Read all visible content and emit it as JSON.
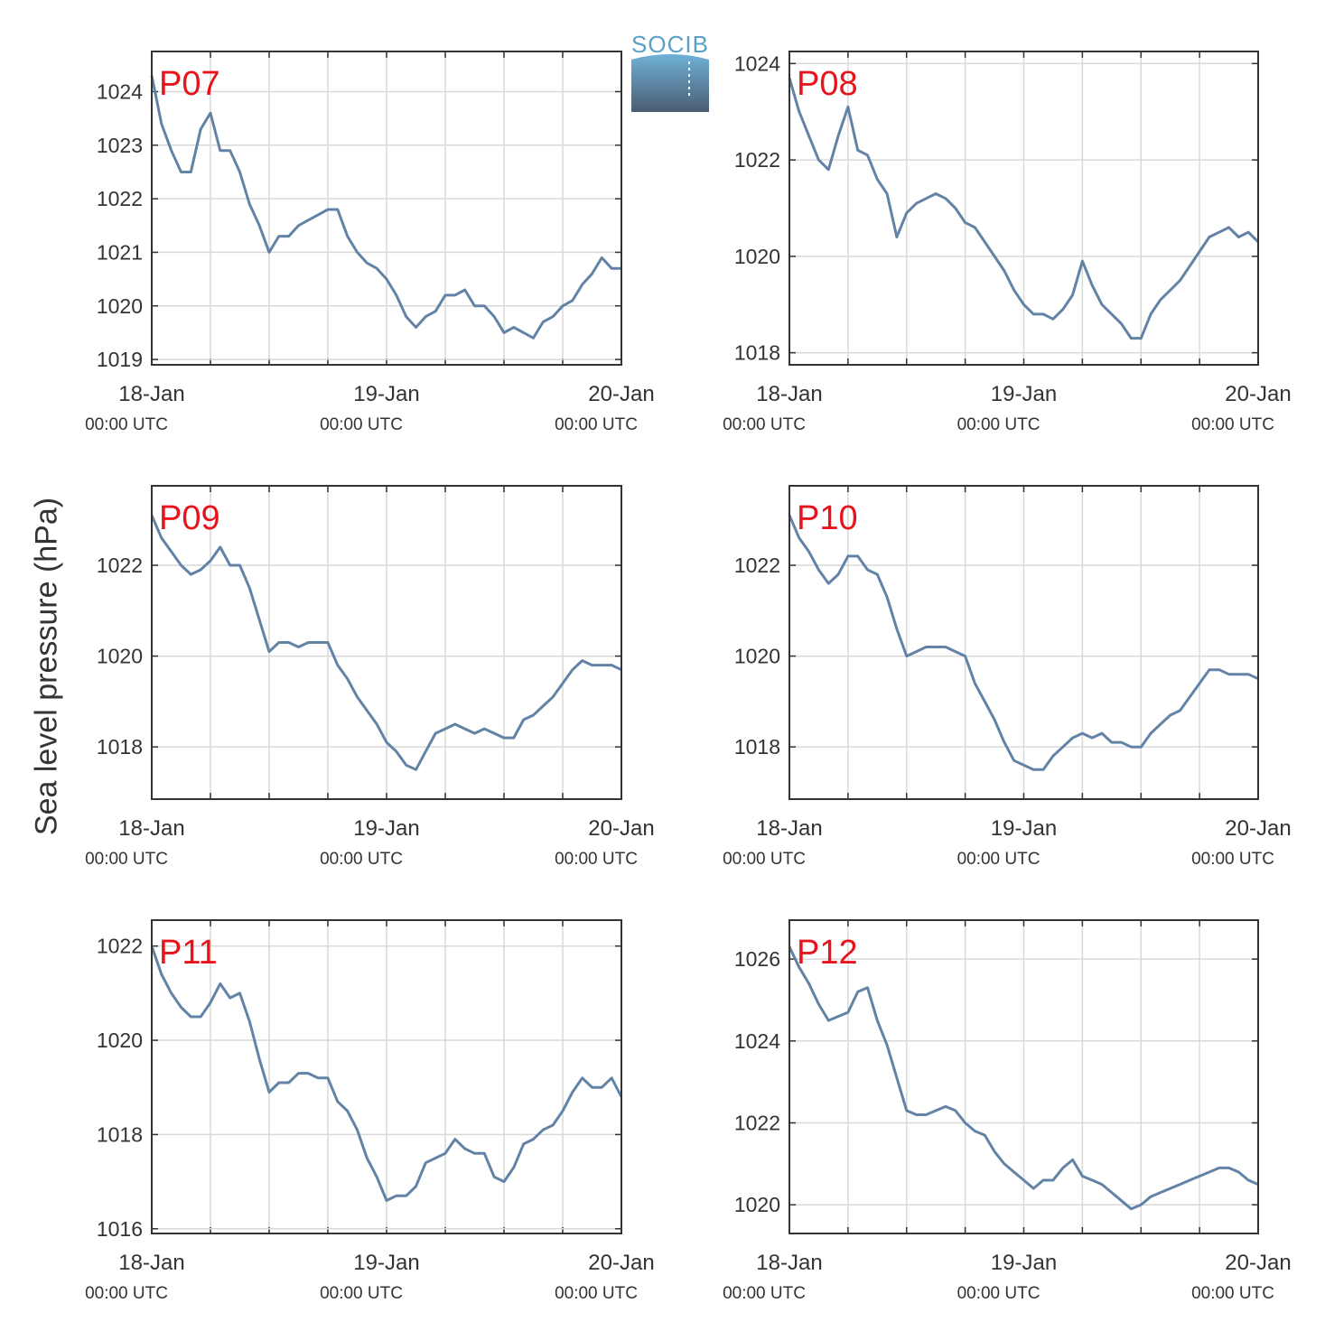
{
  "figure": {
    "ylabel": "Sea level pressure (hPa)",
    "logo": {
      "text": "SOCIB",
      "colors": [
        "#6fb1d6",
        "#4a5d73"
      ]
    },
    "line_color": "#6383a6",
    "station_label_color": "#e8141c",
    "grid": true
  },
  "chart_data": [
    {
      "type": "line",
      "title": "P07",
      "xlabel": "",
      "ylabel": "",
      "x_ticks": [
        {
          "major": "18-Jan",
          "minor": "00:00 UTC",
          "hours": 0
        },
        {
          "major": "19-Jan",
          "minor": "00:00 UTC",
          "hours": 24
        },
        {
          "major": "20-Jan",
          "minor": "00:00 UTC",
          "hours": 48
        }
      ],
      "xlim_hours": [
        0,
        48
      ],
      "ylim": [
        1018.9,
        1024.75
      ],
      "yticks": [
        1019,
        1020,
        1021,
        1022,
        1023,
        1024
      ],
      "series": [
        {
          "x_hours": [
            0,
            1,
            2,
            3,
            4,
            5,
            6,
            7,
            8,
            9,
            10,
            11,
            12,
            13,
            14,
            15,
            16,
            17,
            18,
            19,
            20,
            21,
            22,
            23,
            24,
            25,
            26,
            27,
            28,
            29,
            30,
            31,
            32,
            33,
            34,
            35,
            36,
            37,
            38,
            39,
            40,
            41,
            42,
            43,
            44,
            45,
            46,
            47,
            48
          ],
          "values": [
            1024.3,
            1023.4,
            1022.9,
            1022.5,
            1022.5,
            1023.3,
            1023.6,
            1022.9,
            1022.9,
            1022.5,
            1021.9,
            1021.5,
            1021.0,
            1021.3,
            1021.3,
            1021.5,
            1021.6,
            1021.7,
            1021.8,
            1021.8,
            1021.3,
            1021.0,
            1020.8,
            1020.7,
            1020.5,
            1020.2,
            1019.8,
            1019.6,
            1019.8,
            1019.9,
            1020.2,
            1020.2,
            1020.3,
            1020.0,
            1020.0,
            1019.8,
            1019.5,
            1019.6,
            1019.5,
            1019.4,
            1019.7,
            1019.8,
            1020.0,
            1020.1,
            1020.4,
            1020.6,
            1020.9,
            1020.7,
            1020.7
          ]
        }
      ]
    },
    {
      "type": "line",
      "title": "P08",
      "xlabel": "",
      "ylabel": "",
      "x_ticks": [
        {
          "major": "18-Jan",
          "minor": "00:00 UTC",
          "hours": 0
        },
        {
          "major": "19-Jan",
          "minor": "00:00 UTC",
          "hours": 24
        },
        {
          "major": "20-Jan",
          "minor": "00:00 UTC",
          "hours": 48
        }
      ],
      "xlim_hours": [
        0,
        48
      ],
      "ylim": [
        1017.75,
        1024.25
      ],
      "yticks": [
        1018,
        1020,
        1022,
        1024
      ],
      "series": [
        {
          "x_hours": [
            0,
            1,
            2,
            3,
            4,
            5,
            6,
            7,
            8,
            9,
            10,
            11,
            12,
            13,
            14,
            15,
            16,
            17,
            18,
            19,
            20,
            21,
            22,
            23,
            24,
            25,
            26,
            27,
            28,
            29,
            30,
            31,
            32,
            33,
            34,
            35,
            36,
            37,
            38,
            39,
            40,
            41,
            42,
            43,
            44,
            45,
            46,
            47,
            48
          ],
          "values": [
            1023.7,
            1023.0,
            1022.5,
            1022.0,
            1021.8,
            1022.5,
            1023.1,
            1022.2,
            1022.1,
            1021.6,
            1021.3,
            1020.4,
            1020.9,
            1021.1,
            1021.2,
            1021.3,
            1021.2,
            1021.0,
            1020.7,
            1020.6,
            1020.3,
            1020.0,
            1019.7,
            1019.3,
            1019.0,
            1018.8,
            1018.8,
            1018.7,
            1018.9,
            1019.2,
            1019.9,
            1019.4,
            1019.0,
            1018.8,
            1018.6,
            1018.3,
            1018.3,
            1018.8,
            1019.1,
            1019.3,
            1019.5,
            1019.8,
            1020.1,
            1020.4,
            1020.5,
            1020.6,
            1020.4,
            1020.5,
            1020.3
          ]
        }
      ]
    },
    {
      "type": "line",
      "title": "P09",
      "xlabel": "",
      "ylabel": "",
      "x_ticks": [
        {
          "major": "18-Jan",
          "minor": "00:00 UTC",
          "hours": 0
        },
        {
          "major": "19-Jan",
          "minor": "00:00 UTC",
          "hours": 24
        },
        {
          "major": "20-Jan",
          "minor": "00:00 UTC",
          "hours": 48
        }
      ],
      "xlim_hours": [
        0,
        48
      ],
      "ylim": [
        1016.85,
        1023.75
      ],
      "yticks": [
        1018,
        1020,
        1022
      ],
      "series": [
        {
          "x_hours": [
            0,
            1,
            2,
            3,
            4,
            5,
            6,
            7,
            8,
            9,
            10,
            11,
            12,
            13,
            14,
            15,
            16,
            17,
            18,
            19,
            20,
            21,
            22,
            23,
            24,
            25,
            26,
            27,
            28,
            29,
            30,
            31,
            32,
            33,
            34,
            35,
            36,
            37,
            38,
            39,
            40,
            41,
            42,
            43,
            44,
            45,
            46,
            47,
            48
          ],
          "values": [
            1023.1,
            1022.6,
            1022.3,
            1022.0,
            1021.8,
            1021.9,
            1022.1,
            1022.4,
            1022.0,
            1022.0,
            1021.5,
            1020.8,
            1020.1,
            1020.3,
            1020.3,
            1020.2,
            1020.3,
            1020.3,
            1020.3,
            1019.8,
            1019.5,
            1019.1,
            1018.8,
            1018.5,
            1018.1,
            1017.9,
            1017.6,
            1017.5,
            1017.9,
            1018.3,
            1018.4,
            1018.5,
            1018.4,
            1018.3,
            1018.4,
            1018.3,
            1018.2,
            1018.2,
            1018.6,
            1018.7,
            1018.9,
            1019.1,
            1019.4,
            1019.7,
            1019.9,
            1019.8,
            1019.8,
            1019.8,
            1019.7
          ]
        }
      ]
    },
    {
      "type": "line",
      "title": "P10",
      "xlabel": "",
      "ylabel": "",
      "x_ticks": [
        {
          "major": "18-Jan",
          "minor": "00:00 UTC",
          "hours": 0
        },
        {
          "major": "19-Jan",
          "minor": "00:00 UTC",
          "hours": 24
        },
        {
          "major": "20-Jan",
          "minor": "00:00 UTC",
          "hours": 48
        }
      ],
      "xlim_hours": [
        0,
        48
      ],
      "ylim": [
        1016.85,
        1023.75
      ],
      "yticks": [
        1018,
        1020,
        1022
      ],
      "series": [
        {
          "x_hours": [
            0,
            1,
            2,
            3,
            4,
            5,
            6,
            7,
            8,
            9,
            10,
            11,
            12,
            13,
            14,
            15,
            16,
            17,
            18,
            19,
            20,
            21,
            22,
            23,
            24,
            25,
            26,
            27,
            28,
            29,
            30,
            31,
            32,
            33,
            34,
            35,
            36,
            37,
            38,
            39,
            40,
            41,
            42,
            43,
            44,
            45,
            46,
            47,
            48
          ],
          "values": [
            1023.1,
            1022.6,
            1022.3,
            1021.9,
            1021.6,
            1021.8,
            1022.2,
            1022.2,
            1021.9,
            1021.8,
            1021.3,
            1020.6,
            1020.0,
            1020.1,
            1020.2,
            1020.2,
            1020.2,
            1020.1,
            1020.0,
            1019.4,
            1019.0,
            1018.6,
            1018.1,
            1017.7,
            1017.6,
            1017.5,
            1017.5,
            1017.8,
            1018.0,
            1018.2,
            1018.3,
            1018.2,
            1018.3,
            1018.1,
            1018.1,
            1018.0,
            1018.0,
            1018.3,
            1018.5,
            1018.7,
            1018.8,
            1019.1,
            1019.4,
            1019.7,
            1019.7,
            1019.6,
            1019.6,
            1019.6,
            1019.5
          ]
        }
      ]
    },
    {
      "type": "line",
      "title": "P11",
      "xlabel": "",
      "ylabel": "",
      "x_ticks": [
        {
          "major": "18-Jan",
          "minor": "00:00 UTC",
          "hours": 0
        },
        {
          "major": "19-Jan",
          "minor": "00:00 UTC",
          "hours": 24
        },
        {
          "major": "20-Jan",
          "minor": "00:00 UTC",
          "hours": 48
        }
      ],
      "xlim_hours": [
        0,
        48
      ],
      "ylim": [
        1015.9,
        1022.55
      ],
      "yticks": [
        1016,
        1018,
        1020,
        1022
      ],
      "series": [
        {
          "x_hours": [
            0,
            1,
            2,
            3,
            4,
            5,
            6,
            7,
            8,
            9,
            10,
            11,
            12,
            13,
            14,
            15,
            16,
            17,
            18,
            19,
            20,
            21,
            22,
            23,
            24,
            25,
            26,
            27,
            28,
            29,
            30,
            31,
            32,
            33,
            34,
            35,
            36,
            37,
            38,
            39,
            40,
            41,
            42,
            43,
            44,
            45,
            46,
            47,
            48
          ],
          "values": [
            1022.0,
            1021.4,
            1021.0,
            1020.7,
            1020.5,
            1020.5,
            1020.8,
            1021.2,
            1020.9,
            1021.0,
            1020.4,
            1019.6,
            1018.9,
            1019.1,
            1019.1,
            1019.3,
            1019.3,
            1019.2,
            1019.2,
            1018.7,
            1018.5,
            1018.1,
            1017.5,
            1017.1,
            1016.6,
            1016.7,
            1016.7,
            1016.9,
            1017.4,
            1017.5,
            1017.6,
            1017.9,
            1017.7,
            1017.6,
            1017.6,
            1017.1,
            1017.0,
            1017.3,
            1017.8,
            1017.9,
            1018.1,
            1018.2,
            1018.5,
            1018.9,
            1019.2,
            1019.0,
            1019.0,
            1019.2,
            1018.8
          ]
        }
      ]
    },
    {
      "type": "line",
      "title": "P12",
      "xlabel": "",
      "ylabel": "",
      "x_ticks": [
        {
          "major": "18-Jan",
          "minor": "00:00 UTC",
          "hours": 0
        },
        {
          "major": "19-Jan",
          "minor": "00:00 UTC",
          "hours": 24
        },
        {
          "major": "20-Jan",
          "minor": "00:00 UTC",
          "hours": 48
        }
      ],
      "xlim_hours": [
        0,
        48
      ],
      "ylim": [
        1019.3,
        1026.95
      ],
      "yticks": [
        1020,
        1022,
        1024,
        1026
      ],
      "series": [
        {
          "x_hours": [
            0,
            1,
            2,
            3,
            4,
            5,
            6,
            7,
            8,
            9,
            10,
            11,
            12,
            13,
            14,
            15,
            16,
            17,
            18,
            19,
            20,
            21,
            22,
            23,
            24,
            25,
            26,
            27,
            28,
            29,
            30,
            31,
            32,
            33,
            34,
            35,
            36,
            37,
            38,
            39,
            40,
            41,
            42,
            43,
            44,
            45,
            46,
            47,
            48
          ],
          "values": [
            1026.3,
            1025.8,
            1025.4,
            1024.9,
            1024.5,
            1024.6,
            1024.7,
            1025.2,
            1025.3,
            1024.5,
            1023.9,
            1023.1,
            1022.3,
            1022.2,
            1022.2,
            1022.3,
            1022.4,
            1022.3,
            1022.0,
            1021.8,
            1021.7,
            1021.3,
            1021.0,
            1020.8,
            1020.6,
            1020.4,
            1020.6,
            1020.6,
            1020.9,
            1021.1,
            1020.7,
            1020.6,
            1020.5,
            1020.3,
            1020.1,
            1019.9,
            1020.0,
            1020.2,
            1020.3,
            1020.4,
            1020.5,
            1020.6,
            1020.7,
            1020.8,
            1020.9,
            1020.9,
            1020.8,
            1020.6,
            1020.5
          ]
        }
      ]
    }
  ]
}
